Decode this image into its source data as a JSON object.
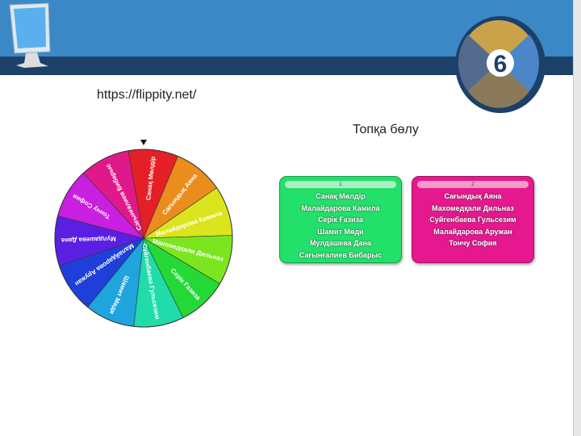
{
  "url": "https://flippity.net/",
  "title": "Топқа бөлу",
  "wheel": {
    "names": [
      "Санақ Мөлдір",
      "Сағындық Аяна",
      "Малайдарова Камила",
      "Махомедқали Дильназ",
      "Серік Ғазиза",
      "Суйгенбаева Гульсезим",
      "Шамит Мөди",
      "Малайдарова Аружан",
      "Мулдашева Дана",
      "Тончу София",
      "Сағынғалиев Бибарыс"
    ],
    "colors": [
      "#e41f26",
      "#ea8d1d",
      "#dbe41d",
      "#7be61f",
      "#24d937",
      "#1fdcaa",
      "#1fa4dd",
      "#1e3fd9",
      "#5a1fe0",
      "#c81fe0",
      "#e0198a"
    ]
  },
  "groups": [
    {
      "label": "1",
      "members": [
        "Санақ Мөлдір",
        "Малайдарова Камила",
        "Серік Ғазиза",
        "Шамит Мөди",
        "Мулдашева Дана",
        "Сағынғалиев Бибарыс"
      ]
    },
    {
      "label": "2",
      "members": [
        "Сағындық Аяна",
        "Махомедқали Дильназ",
        "Суйгенбаева Гульсезим",
        "Малайдарова Аружан",
        "Тончу София"
      ]
    }
  ]
}
